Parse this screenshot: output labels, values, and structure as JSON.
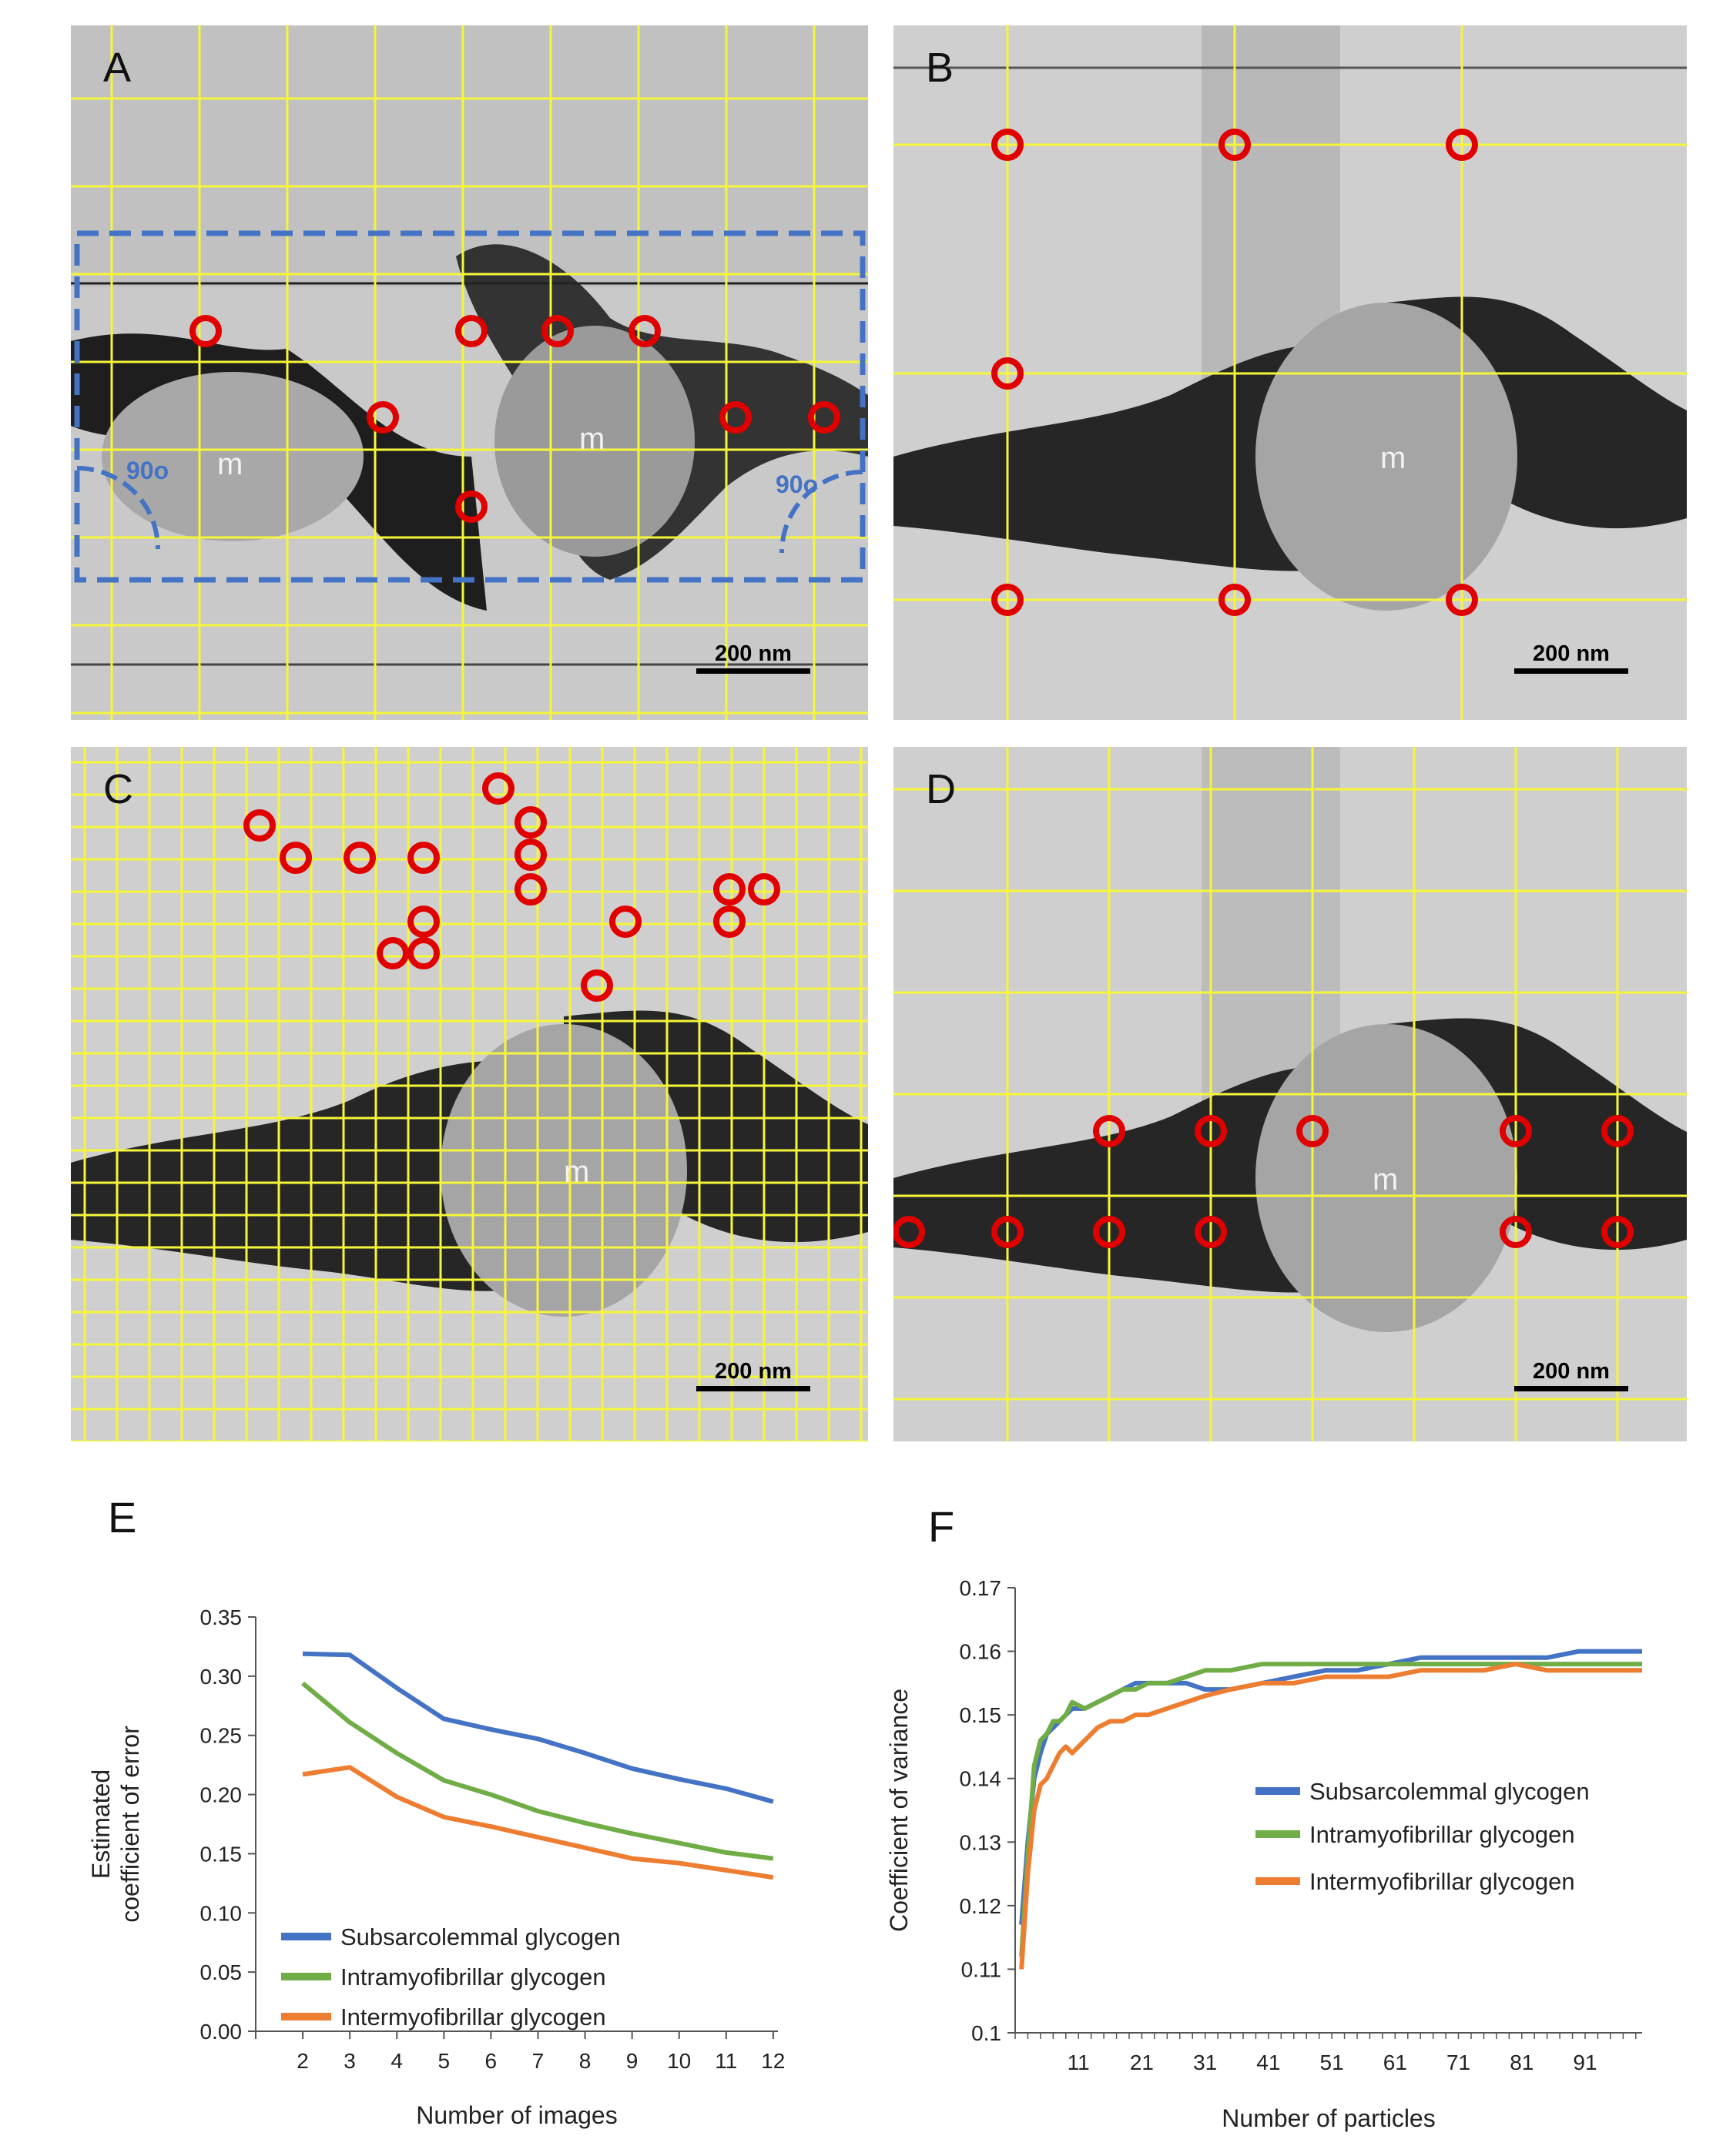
{
  "figure": {
    "panels": {
      "A": {
        "label": "A",
        "scale_bar": "200 nm",
        "m_labels": [
          "m",
          "m"
        ],
        "angle_labels": [
          "90o",
          "90o"
        ]
      },
      "B": {
        "label": "B",
        "scale_bar": "200 nm",
        "m_labels": [
          "m"
        ]
      },
      "C": {
        "label": "C",
        "scale_bar": "200 nm",
        "m_labels": [
          "m"
        ]
      },
      "D": {
        "label": "D",
        "scale_bar": "200 nm",
        "m_labels": [
          "m"
        ]
      }
    },
    "colors": {
      "grid": "#f5f53a",
      "marker": "#e00000",
      "outline": "#4472c4",
      "subsarcolemmal": "#4472c4",
      "intramyofibrillar": "#70ad47",
      "intermyofibrillar": "#ed7d31"
    }
  },
  "chart_data": [
    {
      "panel": "E",
      "type": "line",
      "title": "",
      "xlabel": "Number of images",
      "ylabel_lines": [
        "Estimated",
        "coefficient of error"
      ],
      "categories": [
        "2",
        "3",
        "4",
        "5",
        "6",
        "7",
        "8",
        "9",
        "10",
        "11",
        "12"
      ],
      "ylim": [
        0,
        0.35
      ],
      "yticks": [
        "0.00",
        "0.05",
        "0.10",
        "0.15",
        "0.20",
        "0.25",
        "0.30",
        "0.35"
      ],
      "ytick_values": [
        0,
        0.05,
        0.1,
        0.15,
        0.2,
        0.25,
        0.3,
        0.35
      ],
      "legend_position": "bottom-left",
      "series": [
        {
          "name": "Subsarcolemmal glycogen",
          "color": "#4472c4",
          "values": [
            0.319,
            0.318,
            0.29,
            0.264,
            0.255,
            0.247,
            0.235,
            0.222,
            0.213,
            0.205,
            0.194
          ]
        },
        {
          "name": "Intramyofibrillar glycogen",
          "color": "#70ad47",
          "values": [
            0.294,
            0.261,
            0.235,
            0.212,
            0.2,
            0.186,
            0.176,
            0.167,
            0.159,
            0.151,
            0.146
          ]
        },
        {
          "name": "Intermyofibrillar glycogen",
          "color": "#ed7d31",
          "values": [
            0.217,
            0.223,
            0.198,
            0.181,
            0.173,
            0.164,
            0.155,
            0.146,
            0.142,
            0.136,
            0.13
          ]
        }
      ]
    },
    {
      "panel": "F",
      "type": "line",
      "title": "",
      "xlabel": "Number of particles",
      "ylabel": "Coefficient of variance",
      "xlim": [
        1,
        100
      ],
      "xticks": [
        "11",
        "21",
        "31",
        "41",
        "51",
        "61",
        "71",
        "81",
        "91"
      ],
      "xtick_values": [
        11,
        21,
        31,
        41,
        51,
        61,
        71,
        81,
        91
      ],
      "ylim": [
        0.1,
        0.17
      ],
      "yticks": [
        "0.1",
        "0.11",
        "0.12",
        "0.13",
        "0.14",
        "0.15",
        "0.16",
        "0.17"
      ],
      "ytick_values": [
        0.1,
        0.11,
        0.12,
        0.13,
        0.14,
        0.15,
        0.16,
        0.17
      ],
      "legend_position": "center-right",
      "series": [
        {
          "name": "Subsarcolemmal glycogen",
          "color": "#4472c4",
          "x": [
            2,
            3,
            4,
            5,
            6,
            7,
            8,
            9,
            10,
            12,
            14,
            16,
            18,
            20,
            22,
            25,
            28,
            31,
            35,
            40,
            45,
            50,
            55,
            60,
            65,
            70,
            75,
            80,
            85,
            90,
            95,
            100
          ],
          "y": [
            0.117,
            0.13,
            0.14,
            0.144,
            0.147,
            0.148,
            0.149,
            0.15,
            0.151,
            0.151,
            0.152,
            0.153,
            0.154,
            0.155,
            0.155,
            0.155,
            0.155,
            0.154,
            0.154,
            0.155,
            0.156,
            0.157,
            0.157,
            0.158,
            0.159,
            0.159,
            0.159,
            0.159,
            0.159,
            0.16,
            0.16,
            0.16
          ]
        },
        {
          "name": "Intramyofibrillar glycogen",
          "color": "#70ad47",
          "x": [
            2,
            3,
            4,
            5,
            6,
            7,
            8,
            9,
            10,
            12,
            14,
            16,
            18,
            20,
            22,
            25,
            28,
            31,
            35,
            40,
            45,
            50,
            55,
            60,
            65,
            70,
            75,
            80,
            85,
            90,
            95,
            100
          ],
          "y": [
            0.112,
            0.128,
            0.142,
            0.146,
            0.147,
            0.149,
            0.149,
            0.15,
            0.152,
            0.151,
            0.152,
            0.153,
            0.154,
            0.154,
            0.155,
            0.155,
            0.156,
            0.157,
            0.157,
            0.158,
            0.158,
            0.158,
            0.158,
            0.158,
            0.158,
            0.158,
            0.158,
            0.158,
            0.158,
            0.158,
            0.158,
            0.158
          ]
        },
        {
          "name": "Intermyofibrillar glycogen",
          "color": "#ed7d31",
          "x": [
            2,
            3,
            4,
            5,
            6,
            7,
            8,
            9,
            10,
            12,
            14,
            16,
            18,
            20,
            22,
            25,
            28,
            31,
            35,
            40,
            45,
            50,
            55,
            60,
            65,
            70,
            75,
            80,
            85,
            90,
            95,
            100
          ],
          "y": [
            0.11,
            0.125,
            0.135,
            0.139,
            0.14,
            0.142,
            0.144,
            0.145,
            0.144,
            0.146,
            0.148,
            0.149,
            0.149,
            0.15,
            0.15,
            0.151,
            0.152,
            0.153,
            0.154,
            0.155,
            0.155,
            0.156,
            0.156,
            0.156,
            0.157,
            0.157,
            0.157,
            0.158,
            0.157,
            0.157,
            0.157,
            0.157
          ]
        }
      ]
    }
  ]
}
